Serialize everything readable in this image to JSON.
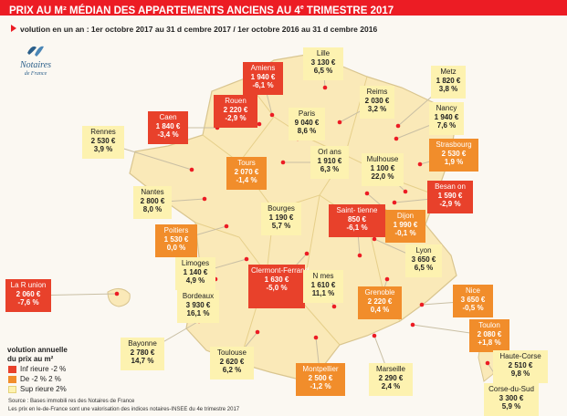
{
  "title": {
    "main": "PRIX AU M² MÉDIAN DES APPARTEMENTS ANCIENS AU 4",
    "suffix": "e",
    "end": " TRIMESTRE 2017"
  },
  "subtitle": "volution en un an : 1er octobre 2017 au 31 d   cembre 2017 / 1er octobre 2016 au 31 d   cembre 2016",
  "logo": {
    "name": "Notaires",
    "sub": "de France"
  },
  "colors": {
    "red": "#e8412b",
    "orange": "#f18d2b",
    "yellow": "#fdf2b0",
    "france": "#fae9b8",
    "region_border": "#f2d88e"
  },
  "legend": {
    "title_line1": "volution annuelle",
    "title_line2": "du prix au m²",
    "items": [
      {
        "label": "Inf rieure   -2 %",
        "color": "#e8412b"
      },
      {
        "label": "De -2 %   2 %",
        "color": "#f18d2b"
      },
      {
        "label": "Sup rieure   2%",
        "color": "#fdf2b0"
      }
    ]
  },
  "cities": [
    {
      "id": "lille",
      "city": "Lille",
      "price": "3 130 €",
      "change": "6,5 %",
      "category": "yellow"
    },
    {
      "id": "amiens",
      "city": "Amiens",
      "price": "1 940 €",
      "change": "-6,1 %",
      "category": "red"
    },
    {
      "id": "rouen",
      "city": "Rouen",
      "price": "2 220 €",
      "change": "-2,9 %",
      "category": "red"
    },
    {
      "id": "caen",
      "city": "Caen",
      "price": "1 840 €",
      "change": "-3,4 %",
      "category": "red"
    },
    {
      "id": "rennes",
      "city": "Rennes",
      "price": "2 530 €",
      "change": "3,9 %",
      "category": "yellow"
    },
    {
      "id": "reims",
      "city": "Reims",
      "price": "2 030 €",
      "change": "3,2 %",
      "category": "yellow"
    },
    {
      "id": "metz",
      "city": "Metz",
      "price": "1 820 €",
      "change": "3,8 %",
      "category": "yellow"
    },
    {
      "id": "paris",
      "city": "Paris",
      "price": "9 040 €",
      "change": "8,6 %",
      "category": "yellow"
    },
    {
      "id": "nancy",
      "city": "Nancy",
      "price": "1 940 €",
      "change": "7,6 %",
      "category": "yellow"
    },
    {
      "id": "strasbourg",
      "city": "Strasbourg",
      "price": "2 530 €",
      "change": "1,9 %",
      "category": "orange"
    },
    {
      "id": "tours",
      "city": "Tours",
      "price": "2 070 €",
      "change": "-1,4 %",
      "category": "orange"
    },
    {
      "id": "orleans",
      "city": "Orl ans",
      "price": "1 910 €",
      "change": "6,3 %",
      "category": "yellow"
    },
    {
      "id": "mulhouse",
      "city": "Mulhouse",
      "price": "1 100 €",
      "change": "22,0 %",
      "category": "yellow"
    },
    {
      "id": "nantes",
      "city": "Nantes",
      "price": "2 800 €",
      "change": "8,0 %",
      "category": "yellow"
    },
    {
      "id": "besancon",
      "city": "Besan  on",
      "price": "1 590 €",
      "change": "-2,9 %",
      "category": "red"
    },
    {
      "id": "bourges",
      "city": "Bourges",
      "price": "1 190 €",
      "change": "5,7 %",
      "category": "yellow"
    },
    {
      "id": "saint-etienne",
      "city": "Saint-  tienne",
      "price": "850 €",
      "change": "-6,1 %",
      "category": "red"
    },
    {
      "id": "dijon",
      "city": "Dijon",
      "price": "1 990 €",
      "change": "-0,1 %",
      "category": "orange"
    },
    {
      "id": "poitiers",
      "city": "Poitiers",
      "price": "1 530 €",
      "change": "0,0 %",
      "category": "orange"
    },
    {
      "id": "lyon",
      "city": "Lyon",
      "price": "3 650 €",
      "change": "6,5 %",
      "category": "yellow"
    },
    {
      "id": "limoges",
      "city": "Limoges",
      "price": "1 140 €",
      "change": "4,9 %",
      "category": "yellow"
    },
    {
      "id": "clermont",
      "city": "Clermont-Ferrand",
      "price": "1 630 €",
      "change": "-5,0 %",
      "category": "red"
    },
    {
      "id": "nimes",
      "city": "N mes",
      "price": "1 610 €",
      "change": "11,1 %",
      "category": "yellow"
    },
    {
      "id": "la-reunion",
      "city": "La R  union",
      "price": "2 060 €",
      "change": "-7,6 %",
      "category": "red"
    },
    {
      "id": "grenoble",
      "city": "Grenoble",
      "price": "2 220 €",
      "change": "0,4 %",
      "category": "orange"
    },
    {
      "id": "nice",
      "city": "Nice",
      "price": "3 650 €",
      "change": "-0,5 %",
      "category": "orange"
    },
    {
      "id": "bordeaux",
      "city": "Bordeaux",
      "price": "3 930 €",
      "change": "16,1 %",
      "category": "yellow"
    },
    {
      "id": "toulon",
      "city": "Toulon",
      "price": "2 080 €",
      "change": "+1,8 %",
      "category": "orange"
    },
    {
      "id": "bayonne",
      "city": "Bayonne",
      "price": "2 780 €",
      "change": "14,7 %",
      "category": "yellow"
    },
    {
      "id": "toulouse",
      "city": "Toulouse",
      "price": "2 620 €",
      "change": "6,2 %",
      "category": "yellow"
    },
    {
      "id": "montpellier",
      "city": "Montpellier",
      "price": "2 500 €",
      "change": "-1,2 %",
      "category": "orange"
    },
    {
      "id": "marseille",
      "city": "Marseille",
      "price": "2 290 €",
      "change": "2,4 %",
      "category": "yellow"
    },
    {
      "id": "haute-corse",
      "city": "Haute-Corse",
      "price": "2 510 €",
      "change": "9,8 %",
      "category": "yellow"
    },
    {
      "id": "corse-du-sud",
      "city": "Corse-du-Sud",
      "price": "3 300 €",
      "change": "5,9 %",
      "category": "yellow"
    }
  ],
  "source": "Source : Bases immobili  res des Notaires de France",
  "note": "Les prix en  le-de-France sont une valorisation des indices notaires-INSEE du 4e trimestre 2017"
}
